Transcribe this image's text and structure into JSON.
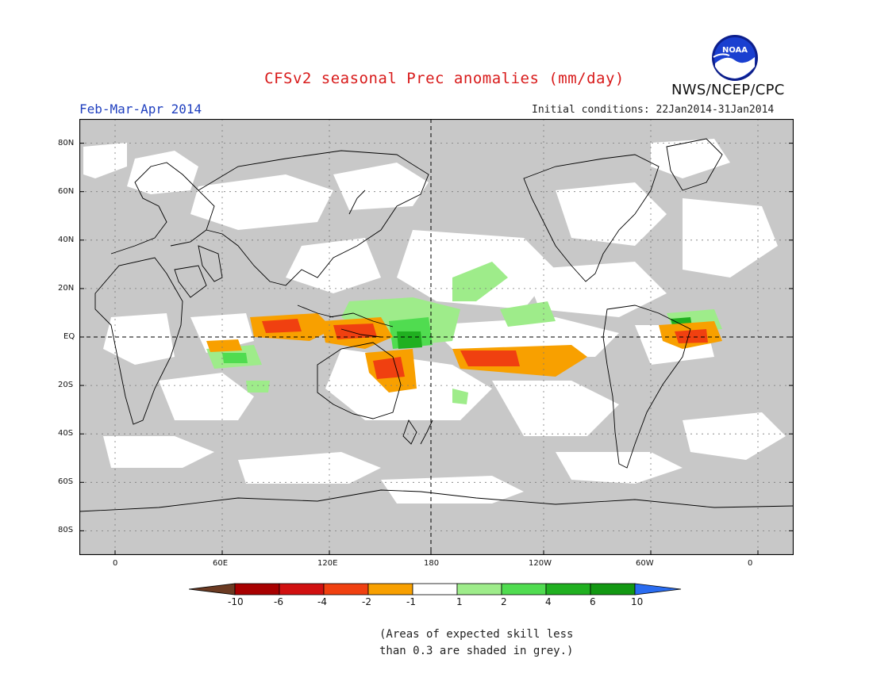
{
  "header": {
    "title": "CFSv2 seasonal Prec anomalies (mm/day)",
    "period": "Feb-Mar-Apr 2014",
    "agency": "NWS/NCEP/CPC",
    "initial_conditions": "Initial conditions: 22Jan2014-31Jan2014",
    "logo_text": "NOAA"
  },
  "map": {
    "projection": "equirectangular",
    "lon_range_east": [
      -20,
      380
    ],
    "lat_range": [
      -90,
      90
    ],
    "background": "#c8c8c8",
    "lat_labels": [
      "80N",
      "60N",
      "40N",
      "20N",
      "EQ",
      "20S",
      "40S",
      "60S",
      "80S"
    ],
    "lon_labels": [
      "0",
      "60E",
      "120E",
      "180",
      "120W",
      "60W",
      "0"
    ],
    "reference_lines": [
      "equator",
      "dateline"
    ]
  },
  "colorbar": {
    "labels": [
      "-10",
      "-6",
      "-4",
      "-2",
      "-1",
      "1",
      "2",
      "4",
      "6",
      "10"
    ],
    "colors": [
      "#6b3a22",
      "#a80000",
      "#d11010",
      "#f04010",
      "#f8a000",
      "#ffffff",
      "#9eec8a",
      "#50dc50",
      "#20b020",
      "#129812",
      "#2a6cf0"
    ]
  },
  "note": {
    "line1": "(Areas of expected skill less",
    "line2": "than 0.3 are shaded in grey.)"
  }
}
